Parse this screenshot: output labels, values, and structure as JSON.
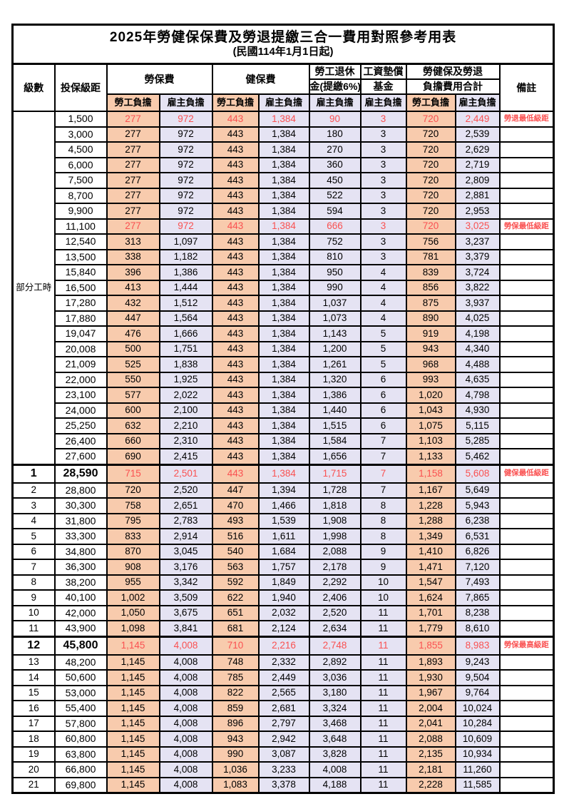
{
  "title": "2025年勞健保保費及勞退提繳三合一費用對照參考用表",
  "subtitle": "(民國114年1月1日起)",
  "header": {
    "level": "級數",
    "bracket": "投保級距",
    "labor_insurance": "勞保費",
    "health_insurance": "健保費",
    "pension_line1": "勞工退休",
    "pension_line2": "金(提繳6%)",
    "wage_fund_line1": "工資墊償",
    "wage_fund_line2": "基金",
    "total_line1": "勞健保及勞退",
    "total_line2": "負擔費用合計",
    "remark": "備註",
    "worker_label": "勞工負擔",
    "employer_label": "雇主負擔"
  },
  "part_time_label": "部分工時",
  "colors": {
    "worker_fill": "#F8CBAD",
    "employer_fill": "#E5E3F3",
    "highlight_text": "#FA5151",
    "remark_text": "#FB3E3E"
  },
  "rows": [
    {
      "bracket": "1,500",
      "li_w": "277",
      "li_e": "972",
      "hi_w": "443",
      "hi_e": "1,384",
      "pension": "90",
      "fund": "3",
      "tot_w": "720",
      "tot_e": "2,449",
      "remark": "勞退最低級距",
      "red": true
    },
    {
      "bracket": "3,000",
      "li_w": "277",
      "li_e": "972",
      "hi_w": "443",
      "hi_e": "1,384",
      "pension": "180",
      "fund": "3",
      "tot_w": "720",
      "tot_e": "2,539",
      "remark": ""
    },
    {
      "bracket": "4,500",
      "li_w": "277",
      "li_e": "972",
      "hi_w": "443",
      "hi_e": "1,384",
      "pension": "270",
      "fund": "3",
      "tot_w": "720",
      "tot_e": "2,629",
      "remark": ""
    },
    {
      "bracket": "6,000",
      "li_w": "277",
      "li_e": "972",
      "hi_w": "443",
      "hi_e": "1,384",
      "pension": "360",
      "fund": "3",
      "tot_w": "720",
      "tot_e": "2,719",
      "remark": ""
    },
    {
      "bracket": "7,500",
      "li_w": "277",
      "li_e": "972",
      "hi_w": "443",
      "hi_e": "1,384",
      "pension": "450",
      "fund": "3",
      "tot_w": "720",
      "tot_e": "2,809",
      "remark": ""
    },
    {
      "bracket": "8,700",
      "li_w": "277",
      "li_e": "972",
      "hi_w": "443",
      "hi_e": "1,384",
      "pension": "522",
      "fund": "3",
      "tot_w": "720",
      "tot_e": "2,881",
      "remark": ""
    },
    {
      "bracket": "9,900",
      "li_w": "277",
      "li_e": "972",
      "hi_w": "443",
      "hi_e": "1,384",
      "pension": "594",
      "fund": "3",
      "tot_w": "720",
      "tot_e": "2,953",
      "remark": ""
    },
    {
      "bracket": "11,100",
      "li_w": "277",
      "li_e": "972",
      "hi_w": "443",
      "hi_e": "1,384",
      "pension": "666",
      "fund": "3",
      "tot_w": "720",
      "tot_e": "3,025",
      "remark": "勞保最低級距",
      "red": true
    },
    {
      "bracket": "12,540",
      "li_w": "313",
      "li_e": "1,097",
      "hi_w": "443",
      "hi_e": "1,384",
      "pension": "752",
      "fund": "3",
      "tot_w": "756",
      "tot_e": "3,237",
      "remark": ""
    },
    {
      "bracket": "13,500",
      "li_w": "338",
      "li_e": "1,182",
      "hi_w": "443",
      "hi_e": "1,384",
      "pension": "810",
      "fund": "3",
      "tot_w": "781",
      "tot_e": "3,379",
      "remark": ""
    },
    {
      "bracket": "15,840",
      "li_w": "396",
      "li_e": "1,386",
      "hi_w": "443",
      "hi_e": "1,384",
      "pension": "950",
      "fund": "4",
      "tot_w": "839",
      "tot_e": "3,724",
      "remark": ""
    },
    {
      "bracket": "16,500",
      "li_w": "413",
      "li_e": "1,444",
      "hi_w": "443",
      "hi_e": "1,384",
      "pension": "990",
      "fund": "4",
      "tot_w": "856",
      "tot_e": "3,822",
      "remark": ""
    },
    {
      "bracket": "17,280",
      "li_w": "432",
      "li_e": "1,512",
      "hi_w": "443",
      "hi_e": "1,384",
      "pension": "1,037",
      "fund": "4",
      "tot_w": "875",
      "tot_e": "3,937",
      "remark": ""
    },
    {
      "bracket": "17,880",
      "li_w": "447",
      "li_e": "1,564",
      "hi_w": "443",
      "hi_e": "1,384",
      "pension": "1,073",
      "fund": "4",
      "tot_w": "890",
      "tot_e": "4,025",
      "remark": ""
    },
    {
      "bracket": "19,047",
      "li_w": "476",
      "li_e": "1,666",
      "hi_w": "443",
      "hi_e": "1,384",
      "pension": "1,143",
      "fund": "5",
      "tot_w": "919",
      "tot_e": "4,198",
      "remark": ""
    },
    {
      "bracket": "20,008",
      "li_w": "500",
      "li_e": "1,751",
      "hi_w": "443",
      "hi_e": "1,384",
      "pension": "1,200",
      "fund": "5",
      "tot_w": "943",
      "tot_e": "4,340",
      "remark": ""
    },
    {
      "bracket": "21,009",
      "li_w": "525",
      "li_e": "1,838",
      "hi_w": "443",
      "hi_e": "1,384",
      "pension": "1,261",
      "fund": "5",
      "tot_w": "968",
      "tot_e": "4,488",
      "remark": ""
    },
    {
      "bracket": "22,000",
      "li_w": "550",
      "li_e": "1,925",
      "hi_w": "443",
      "hi_e": "1,384",
      "pension": "1,320",
      "fund": "6",
      "tot_w": "993",
      "tot_e": "4,635",
      "remark": ""
    },
    {
      "bracket": "23,100",
      "li_w": "577",
      "li_e": "2,022",
      "hi_w": "443",
      "hi_e": "1,384",
      "pension": "1,386",
      "fund": "6",
      "tot_w": "1,020",
      "tot_e": "4,798",
      "remark": ""
    },
    {
      "bracket": "24,000",
      "li_w": "600",
      "li_e": "2,100",
      "hi_w": "443",
      "hi_e": "1,384",
      "pension": "1,440",
      "fund": "6",
      "tot_w": "1,043",
      "tot_e": "4,930",
      "remark": ""
    },
    {
      "bracket": "25,250",
      "li_w": "632",
      "li_e": "2,210",
      "hi_w": "443",
      "hi_e": "1,384",
      "pension": "1,515",
      "fund": "6",
      "tot_w": "1,075",
      "tot_e": "5,115",
      "remark": ""
    },
    {
      "bracket": "26,400",
      "li_w": "660",
      "li_e": "2,310",
      "hi_w": "443",
      "hi_e": "1,384",
      "pension": "1,584",
      "fund": "7",
      "tot_w": "1,103",
      "tot_e": "5,285",
      "remark": ""
    },
    {
      "bracket": "27,600",
      "li_w": "690",
      "li_e": "2,415",
      "hi_w": "443",
      "hi_e": "1,384",
      "pension": "1,656",
      "fund": "7",
      "tot_w": "1,133",
      "tot_e": "5,462",
      "remark": ""
    },
    {
      "level": "1",
      "bracket": "28,590",
      "li_w": "715",
      "li_e": "2,501",
      "hi_w": "443",
      "hi_e": "1,384",
      "pension": "1,715",
      "fund": "7",
      "tot_w": "1,158",
      "tot_e": "5,608",
      "remark": "健保最低級距",
      "red": true,
      "emph": true
    },
    {
      "level": "2",
      "bracket": "28,800",
      "li_w": "720",
      "li_e": "2,520",
      "hi_w": "447",
      "hi_e": "1,394",
      "pension": "1,728",
      "fund": "7",
      "tot_w": "1,167",
      "tot_e": "5,649",
      "remark": ""
    },
    {
      "level": "3",
      "bracket": "30,300",
      "li_w": "758",
      "li_e": "2,651",
      "hi_w": "470",
      "hi_e": "1,466",
      "pension": "1,818",
      "fund": "8",
      "tot_w": "1,228",
      "tot_e": "5,943",
      "remark": ""
    },
    {
      "level": "4",
      "bracket": "31,800",
      "li_w": "795",
      "li_e": "2,783",
      "hi_w": "493",
      "hi_e": "1,539",
      "pension": "1,908",
      "fund": "8",
      "tot_w": "1,288",
      "tot_e": "6,238",
      "remark": ""
    },
    {
      "level": "5",
      "bracket": "33,300",
      "li_w": "833",
      "li_e": "2,914",
      "hi_w": "516",
      "hi_e": "1,611",
      "pension": "1,998",
      "fund": "8",
      "tot_w": "1,349",
      "tot_e": "6,531",
      "remark": ""
    },
    {
      "level": "6",
      "bracket": "34,800",
      "li_w": "870",
      "li_e": "3,045",
      "hi_w": "540",
      "hi_e": "1,684",
      "pension": "2,088",
      "fund": "9",
      "tot_w": "1,410",
      "tot_e": "6,826",
      "remark": ""
    },
    {
      "level": "7",
      "bracket": "36,300",
      "li_w": "908",
      "li_e": "3,176",
      "hi_w": "563",
      "hi_e": "1,757",
      "pension": "2,178",
      "fund": "9",
      "tot_w": "1,471",
      "tot_e": "7,120",
      "remark": ""
    },
    {
      "level": "8",
      "bracket": "38,200",
      "li_w": "955",
      "li_e": "3,342",
      "hi_w": "592",
      "hi_e": "1,849",
      "pension": "2,292",
      "fund": "10",
      "tot_w": "1,547",
      "tot_e": "7,493",
      "remark": ""
    },
    {
      "level": "9",
      "bracket": "40,100",
      "li_w": "1,002",
      "li_e": "3,509",
      "hi_w": "622",
      "hi_e": "1,940",
      "pension": "2,406",
      "fund": "10",
      "tot_w": "1,624",
      "tot_e": "7,865",
      "remark": ""
    },
    {
      "level": "10",
      "bracket": "42,000",
      "li_w": "1,050",
      "li_e": "3,675",
      "hi_w": "651",
      "hi_e": "2,032",
      "pension": "2,520",
      "fund": "11",
      "tot_w": "1,701",
      "tot_e": "8,238",
      "remark": ""
    },
    {
      "level": "11",
      "bracket": "43,900",
      "li_w": "1,098",
      "li_e": "3,841",
      "hi_w": "681",
      "hi_e": "2,124",
      "pension": "2,634",
      "fund": "11",
      "tot_w": "1,779",
      "tot_e": "8,610",
      "remark": ""
    },
    {
      "level": "12",
      "bracket": "45,800",
      "li_w": "1,145",
      "li_e": "4,008",
      "hi_w": "710",
      "hi_e": "2,216",
      "pension": "2,748",
      "fund": "11",
      "tot_w": "1,855",
      "tot_e": "8,983",
      "remark": "勞保最高級距",
      "red": true,
      "emph": true
    },
    {
      "level": "13",
      "bracket": "48,200",
      "li_w": "1,145",
      "li_e": "4,008",
      "hi_w": "748",
      "hi_e": "2,332",
      "pension": "2,892",
      "fund": "11",
      "tot_w": "1,893",
      "tot_e": "9,243",
      "remark": ""
    },
    {
      "level": "14",
      "bracket": "50,600",
      "li_w": "1,145",
      "li_e": "4,008",
      "hi_w": "785",
      "hi_e": "2,449",
      "pension": "3,036",
      "fund": "11",
      "tot_w": "1,930",
      "tot_e": "9,504",
      "remark": ""
    },
    {
      "level": "15",
      "bracket": "53,000",
      "li_w": "1,145",
      "li_e": "4,008",
      "hi_w": "822",
      "hi_e": "2,565",
      "pension": "3,180",
      "fund": "11",
      "tot_w": "1,967",
      "tot_e": "9,764",
      "remark": ""
    },
    {
      "level": "16",
      "bracket": "55,400",
      "li_w": "1,145",
      "li_e": "4,008",
      "hi_w": "859",
      "hi_e": "2,681",
      "pension": "3,324",
      "fund": "11",
      "tot_w": "2,004",
      "tot_e": "10,024",
      "remark": ""
    },
    {
      "level": "17",
      "bracket": "57,800",
      "li_w": "1,145",
      "li_e": "4,008",
      "hi_w": "896",
      "hi_e": "2,797",
      "pension": "3,468",
      "fund": "11",
      "tot_w": "2,041",
      "tot_e": "10,284",
      "remark": ""
    },
    {
      "level": "18",
      "bracket": "60,800",
      "li_w": "1,145",
      "li_e": "4,008",
      "hi_w": "943",
      "hi_e": "2,942",
      "pension": "3,648",
      "fund": "11",
      "tot_w": "2,088",
      "tot_e": "10,609",
      "remark": ""
    },
    {
      "level": "19",
      "bracket": "63,800",
      "li_w": "1,145",
      "li_e": "4,008",
      "hi_w": "990",
      "hi_e": "3,087",
      "pension": "3,828",
      "fund": "11",
      "tot_w": "2,135",
      "tot_e": "10,934",
      "remark": ""
    },
    {
      "level": "20",
      "bracket": "66,800",
      "li_w": "1,145",
      "li_e": "4,008",
      "hi_w": "1,036",
      "hi_e": "3,233",
      "pension": "4,008",
      "fund": "11",
      "tot_w": "2,181",
      "tot_e": "11,260",
      "remark": ""
    },
    {
      "level": "21",
      "bracket": "69,800",
      "li_w": "1,145",
      "li_e": "4,008",
      "hi_w": "1,083",
      "hi_e": "3,378",
      "pension": "4,188",
      "fund": "11",
      "tot_w": "2,228",
      "tot_e": "11,585",
      "remark": ""
    }
  ]
}
